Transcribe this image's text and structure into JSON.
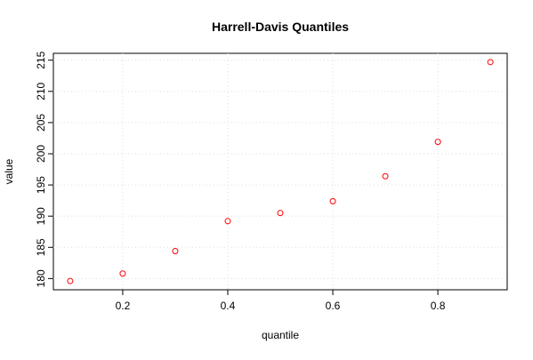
{
  "chart_data": {
    "type": "scatter",
    "title": "Harrell-Davis Quantiles",
    "x_label": "quantile",
    "y_label": "value",
    "x": [
      0.1,
      0.2,
      0.3,
      0.4,
      0.5,
      0.6,
      0.7,
      0.8,
      0.9
    ],
    "series": [
      {
        "color": "#ff0000",
        "values": [
          179.6,
          180.8,
          184.4,
          189.2,
          190.5,
          192.4,
          196.4,
          201.9,
          214.7
        ]
      }
    ],
    "xlim": [
      0.068,
      0.932
    ],
    "xticks": [
      0.2,
      0.4,
      0.6,
      0.8
    ],
    "ylim": [
      178.2,
      216.1
    ],
    "yticks": [
      180,
      185,
      190,
      195,
      200,
      205,
      210,
      215
    ],
    "grid": true
  }
}
